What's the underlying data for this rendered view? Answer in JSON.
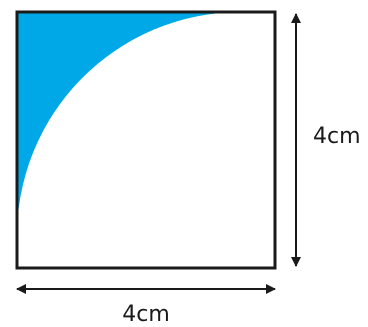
{
  "diagram": {
    "side_label_right": "4cm",
    "side_label_bottom": "4cm"
  },
  "colors": {
    "shaded_region": "#00a8e8",
    "outline": "#1a1a1a",
    "background": "#ffffff"
  }
}
